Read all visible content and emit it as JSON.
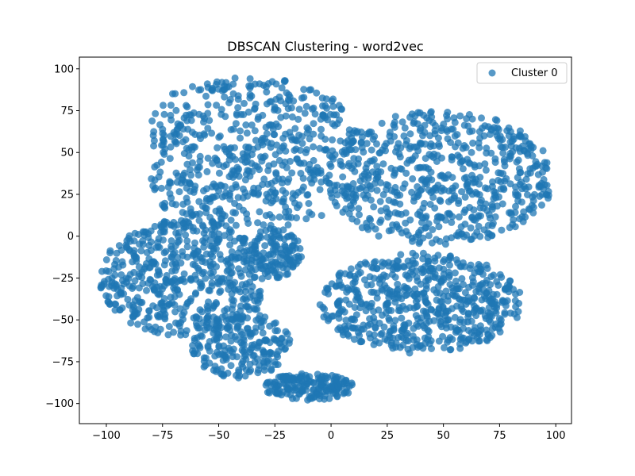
{
  "chart_data": {
    "type": "scatter",
    "title": "DBSCAN Clustering - word2vec",
    "xlabel": "",
    "ylabel": "",
    "xlim": [
      -112,
      107
    ],
    "ylim": [
      -112,
      107
    ],
    "xticks": [
      -100,
      -75,
      -50,
      -25,
      0,
      25,
      50,
      75,
      100
    ],
    "yticks": [
      -100,
      -75,
      -50,
      -25,
      0,
      25,
      50,
      75,
      100
    ],
    "grid": false,
    "legend_position": "top-right",
    "series": [
      {
        "name": "Cluster 0",
        "color": "#1f77b4",
        "alpha": 0.75,
        "clusters": [
          {
            "cx": -35,
            "cy": 50,
            "rx": 58,
            "ry": 45,
            "n": 700,
            "xmin": -80,
            "xmax": 10,
            "ymin": 5,
            "ymax": 95
          },
          {
            "cx": 47,
            "cy": 35,
            "rx": 53,
            "ry": 40,
            "n": 650,
            "xmin": 5,
            "xmax": 97,
            "ymin": -5,
            "ymax": 82
          },
          {
            "cx": -65,
            "cy": -25,
            "rx": 38,
            "ry": 35,
            "n": 550,
            "xmin": -103,
            "xmax": -30,
            "ymin": -65,
            "ymax": 15
          },
          {
            "cx": 40,
            "cy": -40,
            "rx": 45,
            "ry": 30,
            "n": 600,
            "xmin": -15,
            "xmax": 95,
            "ymin": -80,
            "ymax": -5
          },
          {
            "cx": -40,
            "cy": -65,
            "rx": 22,
            "ry": 20,
            "n": 200,
            "xmin": -65,
            "xmax": -15,
            "ymin": -90,
            "ymax": -40
          },
          {
            "cx": -10,
            "cy": -90,
            "rx": 20,
            "ry": 8,
            "n": 180,
            "xmin": -30,
            "xmax": 20,
            "ymin": -102,
            "ymax": -78
          },
          {
            "cx": -25,
            "cy": -10,
            "rx": 12,
            "ry": 15,
            "n": 120,
            "xmin": -40,
            "xmax": -10,
            "ymin": -35,
            "ymax": 10
          }
        ]
      }
    ]
  }
}
